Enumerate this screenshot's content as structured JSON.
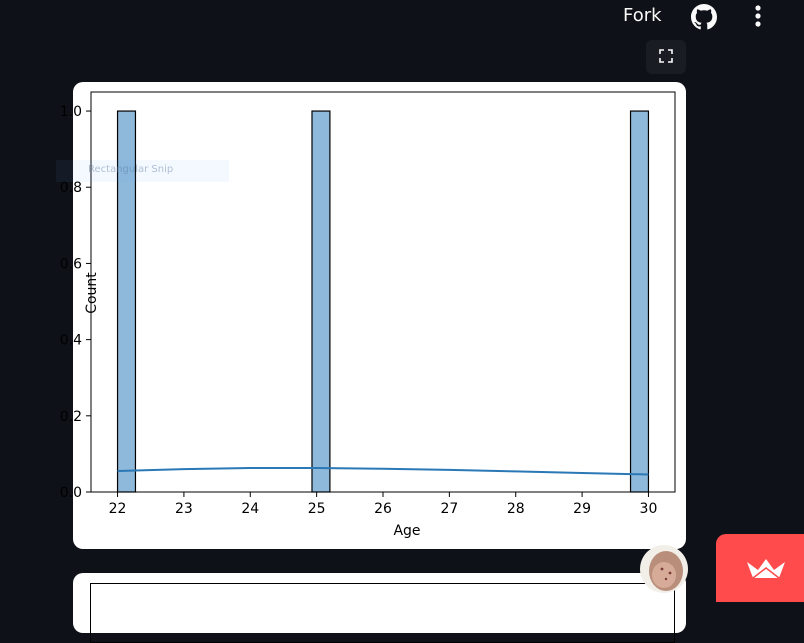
{
  "header": {
    "fork_label": "Fork",
    "github_icon": "github-icon",
    "menu_icon": "more-vertical-icon"
  },
  "fullscreen": {
    "icon": "fullscreen-icon"
  },
  "overlay": {
    "text": "Rectangular Snip"
  },
  "chart_data": {
    "type": "bar",
    "xlabel": "Age",
    "ylabel": "Count",
    "xlim": [
      21.6,
      30.4
    ],
    "ylim": [
      0,
      1.05
    ],
    "x_ticks": [
      22,
      23,
      24,
      25,
      26,
      27,
      28,
      29,
      30
    ],
    "y_ticks": [
      0.0,
      0.2,
      0.4,
      0.6,
      0.8,
      1.0
    ],
    "y_tick_labels": [
      "0.0",
      "0.2",
      "0.4",
      "0.6",
      "0.8",
      "1.0"
    ],
    "bars": [
      {
        "x_start": 22.0,
        "x_end": 22.27,
        "value": 1
      },
      {
        "x_start": 24.93,
        "x_end": 25.2,
        "value": 1
      },
      {
        "x_start": 29.73,
        "x_end": 30.0,
        "value": 1
      }
    ],
    "kde": {
      "x": [
        22,
        23,
        24,
        25,
        26,
        27,
        28,
        29,
        30
      ],
      "y": [
        0.055,
        0.06,
        0.063,
        0.063,
        0.061,
        0.058,
        0.054,
        0.05,
        0.046
      ]
    },
    "colors": {
      "bar_fill": "#8fb9da",
      "bar_edge": "#000000",
      "kde_line": "#2a78b5"
    }
  },
  "badge": {
    "icon": "streamlit-crown-icon"
  },
  "avatar": {
    "icon": "user-avatar-icon"
  }
}
